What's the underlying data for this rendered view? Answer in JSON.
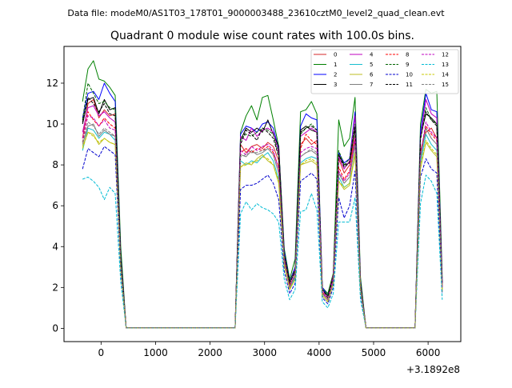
{
  "chart_data": {
    "type": "line",
    "suptitle": "Data file: modeM0/AS1T03_178T01_9000003488_23610cztM0_level2_quad_clean.evt",
    "title": "Quadrant 0 module wise count rates with 100.0s bins.",
    "xlabel": "",
    "ylabel": "",
    "x_offset_label": "+3.1892e8",
    "xlim": [
      -680,
      6600
    ],
    "ylim": [
      -0.65,
      13.8
    ],
    "xticks": [
      0,
      1000,
      2000,
      3000,
      4000,
      5000,
      6000
    ],
    "xtick_labels": [
      "0",
      "1000",
      "2000",
      "3000",
      "4000",
      "5000",
      "6000"
    ],
    "yticks": [
      0,
      2,
      4,
      6,
      8,
      10,
      12
    ],
    "ytick_labels": [
      "0",
      "2",
      "4",
      "6",
      "8",
      "10",
      "12"
    ],
    "grid": false,
    "legend_position": "top-right",
    "legend_columns": 4,
    "x": [
      -340,
      -240,
      -140,
      -40,
      60,
      160,
      260,
      360,
      460,
      2460,
      2560,
      2660,
      2760,
      2860,
      2960,
      3060,
      3160,
      3260,
      3360,
      3460,
      3560,
      3660,
      3760,
      3860,
      3960,
      4060,
      4160,
      4260,
      4360,
      4460,
      4560,
      4660,
      4760,
      4860,
      5760,
      5860,
      5960,
      6060,
      6160,
      6260
    ],
    "series": [
      {
        "name": "0",
        "color": "#d62728",
        "dash": "solid",
        "values": [
          9.3,
          11.0,
          11.2,
          10.3,
          10.7,
          10.4,
          10.5,
          3.0,
          0.02,
          0.02,
          9.0,
          8.6,
          8.9,
          9.0,
          8.8,
          9.1,
          8.9,
          8.2,
          3.4,
          2.1,
          2.5,
          9.0,
          9.3,
          9.0,
          9.2,
          1.7,
          1.4,
          2.3,
          8.3,
          7.6,
          8.0,
          9.4,
          2.1,
          0.02,
          0.02,
          8.7,
          9.6,
          9.8,
          9.3,
          2.0
        ]
      },
      {
        "name": "1",
        "color": "#008000",
        "dash": "solid",
        "values": [
          11.1,
          12.7,
          13.1,
          12.2,
          12.1,
          11.8,
          11.4,
          4.0,
          0.02,
          0.02,
          9.6,
          10.4,
          10.9,
          10.2,
          11.3,
          11.4,
          10.2,
          8.9,
          3.9,
          2.4,
          3.4,
          10.6,
          10.7,
          11.1,
          10.5,
          2.0,
          1.7,
          2.7,
          10.2,
          8.9,
          9.3,
          11.3,
          2.5,
          0.02,
          0.02,
          10.0,
          11.7,
          11.5,
          11.6,
          2.5
        ]
      },
      {
        "name": "2",
        "color": "#0000ff",
        "dash": "solid",
        "values": [
          10.3,
          11.5,
          11.6,
          11.2,
          12.0,
          11.5,
          11.1,
          3.6,
          0.02,
          0.02,
          9.5,
          9.9,
          9.8,
          9.6,
          10.0,
          10.1,
          9.8,
          8.8,
          3.8,
          2.3,
          3.0,
          9.9,
          10.5,
          10.3,
          10.2,
          2.0,
          1.6,
          2.5,
          8.6,
          8.1,
          8.3,
          10.6,
          2.3,
          0.02,
          0.02,
          9.6,
          11.5,
          10.7,
          10.6,
          2.3
        ]
      },
      {
        "name": "3",
        "color": "#000000",
        "dash": "solid",
        "values": [
          10.0,
          11.2,
          11.3,
          10.5,
          11.2,
          10.7,
          10.8,
          3.5,
          0.02,
          0.02,
          9.2,
          9.8,
          9.6,
          9.8,
          9.6,
          10.2,
          9.5,
          8.9,
          3.6,
          2.2,
          2.8,
          9.7,
          9.9,
          9.7,
          9.6,
          1.9,
          1.6,
          2.6,
          8.5,
          8.0,
          8.1,
          9.8,
          2.2,
          0.02,
          0.02,
          9.4,
          10.5,
          10.3,
          10.0,
          2.2
        ]
      },
      {
        "name": "4",
        "color": "#bf00bf",
        "dash": "solid",
        "values": [
          9.6,
          10.8,
          10.9,
          10.4,
          10.6,
          10.3,
          10.1,
          3.3,
          0.02,
          0.02,
          9.4,
          9.2,
          9.8,
          9.4,
          9.7,
          9.8,
          9.6,
          8.6,
          3.6,
          2.2,
          2.9,
          9.4,
          9.6,
          9.8,
          9.6,
          1.9,
          1.5,
          2.6,
          8.4,
          7.8,
          8.2,
          10.4,
          2.2,
          0.02,
          0.02,
          9.3,
          11.2,
          10.5,
          10.3,
          2.2
        ]
      },
      {
        "name": "5",
        "color": "#17becf",
        "dash": "solid",
        "values": [
          8.7,
          9.8,
          9.7,
          9.3,
          9.6,
          9.5,
          9.2,
          3.0,
          0.02,
          0.02,
          8.2,
          8.0,
          8.2,
          8.1,
          8.4,
          8.6,
          8.2,
          7.3,
          3.2,
          1.9,
          2.5,
          8.1,
          8.3,
          8.4,
          8.3,
          1.6,
          1.3,
          2.2,
          7.4,
          6.9,
          7.1,
          8.6,
          1.9,
          0.02,
          0.02,
          8.1,
          9.5,
          9.0,
          8.7,
          1.9
        ]
      },
      {
        "name": "6",
        "color": "#bcbd22",
        "dash": "solid",
        "values": [
          8.9,
          9.6,
          9.5,
          9.0,
          9.3,
          9.1,
          9.0,
          2.9,
          0.02,
          0.02,
          7.9,
          8.1,
          8.0,
          8.3,
          8.5,
          8.2,
          8.0,
          7.1,
          3.1,
          1.9,
          2.4,
          8.0,
          8.1,
          8.2,
          8.0,
          1.6,
          1.3,
          2.2,
          7.2,
          6.8,
          7.0,
          8.5,
          1.9,
          0.02,
          0.02,
          7.8,
          9.1,
          8.7,
          8.4,
          1.8
        ]
      },
      {
        "name": "7",
        "color": "#7f7f7f",
        "dash": "solid",
        "values": [
          9.0,
          9.9,
          10.0,
          9.4,
          9.7,
          9.5,
          9.4,
          3.1,
          0.02,
          0.02,
          8.5,
          8.4,
          8.7,
          8.5,
          8.6,
          8.8,
          8.5,
          7.6,
          3.3,
          2.0,
          2.6,
          8.4,
          8.6,
          8.7,
          8.5,
          1.7,
          1.4,
          2.3,
          7.6,
          7.1,
          7.4,
          9.0,
          2.0,
          0.02,
          0.02,
          8.3,
          9.8,
          9.3,
          9.0,
          2.0
        ]
      },
      {
        "name": "8",
        "color": "#ff0000",
        "dash": "dashed",
        "values": [
          9.1,
          10.6,
          10.2,
          9.9,
          10.3,
          10.0,
          9.8,
          3.2,
          0.02,
          0.02,
          8.6,
          8.8,
          8.6,
          8.8,
          8.7,
          8.9,
          8.6,
          7.9,
          3.4,
          2.1,
          2.6,
          8.8,
          9.5,
          9.2,
          9.0,
          1.8,
          1.4,
          2.3,
          7.9,
          7.3,
          7.7,
          9.2,
          2.1,
          0.02,
          0.02,
          8.6,
          9.9,
          9.5,
          9.2,
          2.0
        ]
      },
      {
        "name": "9",
        "color": "#006400",
        "dash": "dashed",
        "values": [
          10.2,
          12.0,
          11.5,
          11.0,
          11.1,
          10.8,
          10.7,
          3.5,
          0.02,
          0.02,
          9.3,
          9.5,
          9.4,
          9.6,
          9.8,
          9.7,
          9.5,
          8.5,
          3.7,
          2.3,
          2.9,
          9.5,
          9.8,
          10.0,
          9.7,
          1.9,
          1.6,
          2.5,
          8.7,
          8.0,
          8.3,
          10.0,
          2.2,
          0.02,
          0.02,
          9.2,
          10.8,
          10.2,
          10.0,
          2.2
        ]
      },
      {
        "name": "10",
        "color": "#0000cd",
        "dash": "dashed",
        "values": [
          7.8,
          8.8,
          8.6,
          8.4,
          8.9,
          8.7,
          8.5,
          2.8,
          0.02,
          0.02,
          6.8,
          7.0,
          7.0,
          7.1,
          7.3,
          7.5,
          7.1,
          6.3,
          2.8,
          1.7,
          2.2,
          7.2,
          7.4,
          7.6,
          7.3,
          1.5,
          1.2,
          2.0,
          6.4,
          5.4,
          6.0,
          7.7,
          1.7,
          0.02,
          0.02,
          7.4,
          8.3,
          7.8,
          7.6,
          1.7
        ]
      },
      {
        "name": "11",
        "color": "#000000",
        "dash": "dashed",
        "values": [
          10.1,
          11.3,
          11.0,
          10.6,
          11.0,
          10.5,
          10.4,
          3.4,
          0.02,
          0.02,
          9.0,
          9.7,
          9.5,
          9.2,
          9.8,
          9.6,
          9.3,
          8.4,
          3.6,
          2.2,
          2.8,
          9.6,
          9.8,
          9.9,
          9.7,
          1.9,
          1.5,
          2.5,
          8.5,
          7.9,
          8.1,
          9.9,
          2.2,
          0.02,
          0.02,
          9.3,
          10.6,
          10.2,
          9.9,
          2.2
        ]
      },
      {
        "name": "12",
        "color": "#c000c0",
        "dash": "dashed",
        "values": [
          9.3,
          10.4,
          10.3,
          9.9,
          10.2,
          9.8,
          9.7,
          3.2,
          0.02,
          0.02,
          8.7,
          8.5,
          8.9,
          8.7,
          8.9,
          9.0,
          8.7,
          7.8,
          3.4,
          2.0,
          2.7,
          8.6,
          8.8,
          8.9,
          8.8,
          1.8,
          1.4,
          2.4,
          7.7,
          7.2,
          7.6,
          9.3,
          2.0,
          0.02,
          0.02,
          8.5,
          10.1,
          9.6,
          9.3,
          2.0
        ]
      },
      {
        "name": "13",
        "color": "#00bcd4",
        "dash": "dashed",
        "values": [
          7.3,
          7.4,
          7.2,
          6.9,
          6.3,
          6.9,
          6.6,
          2.3,
          0.02,
          0.02,
          5.6,
          6.2,
          5.8,
          6.1,
          5.9,
          5.8,
          5.6,
          5.2,
          2.4,
          1.4,
          1.9,
          5.7,
          5.8,
          6.6,
          5.8,
          1.3,
          1.0,
          1.7,
          5.2,
          5.2,
          5.2,
          6.4,
          1.4,
          0.02,
          0.02,
          6.1,
          7.5,
          7.2,
          6.6,
          1.4
        ]
      },
      {
        "name": "14",
        "color": "#c8c800",
        "dash": "dashed",
        "values": [
          8.8,
          9.6,
          9.4,
          9.1,
          9.3,
          9.1,
          9.0,
          2.9,
          0.02,
          0.02,
          7.9,
          8.0,
          8.1,
          8.2,
          8.4,
          8.3,
          8.0,
          7.2,
          3.1,
          1.9,
          2.4,
          8.0,
          8.2,
          8.3,
          8.1,
          1.6,
          1.3,
          2.2,
          7.2,
          6.9,
          7.1,
          8.6,
          1.9,
          0.02,
          0.02,
          7.9,
          9.2,
          8.8,
          8.5,
          1.8
        ]
      },
      {
        "name": "15",
        "color": "#808080",
        "dash": "dashed",
        "values": [
          9.1,
          10.1,
          9.9,
          9.5,
          9.8,
          9.6,
          9.4,
          3.1,
          0.02,
          0.02,
          8.4,
          8.5,
          8.6,
          8.6,
          8.7,
          8.8,
          8.5,
          7.6,
          3.3,
          2.0,
          2.6,
          8.4,
          8.6,
          8.8,
          8.6,
          1.7,
          1.4,
          2.3,
          7.6,
          7.1,
          7.4,
          9.0,
          2.0,
          0.02,
          0.02,
          8.4,
          9.8,
          9.3,
          9.0,
          2.0
        ]
      }
    ]
  }
}
